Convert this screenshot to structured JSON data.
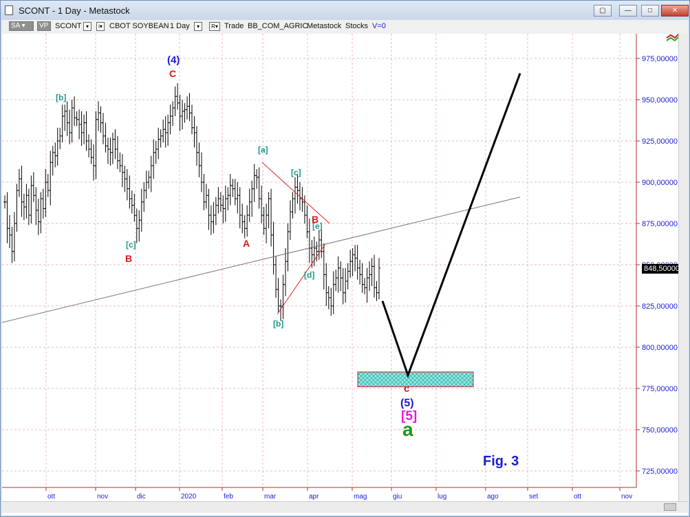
{
  "window": {
    "title": "SCONT - 1 Day - Metastock",
    "buttons": [
      "restore",
      "minimize",
      "maximize",
      "close"
    ]
  },
  "toolbar": {
    "sa_label": "SA",
    "vp_label": "VP",
    "symbol": "SCONT",
    "name": "CBOT SOYBEAN",
    "period": "1 Day",
    "trade_label": "Trade",
    "source": "BB_COM_AGRIC",
    "app": "Metastock",
    "type": "Stocks",
    "volume": "V=0"
  },
  "price_tag": "848,50000",
  "wave_labels": [
    {
      "text": "(4)",
      "color": "#1a1ad6"
    },
    {
      "text": "C",
      "color": "#d41b1b"
    },
    {
      "text": "[b]",
      "color": "#1f9a8a"
    },
    {
      "text": "[c]",
      "color": "#1f9a8a"
    },
    {
      "text": "B",
      "color": "#d41b1b"
    },
    {
      "text": "[a]",
      "color": "#1f9a8a"
    },
    {
      "text": "[c]",
      "color": "#1f9a8a"
    },
    {
      "text": "A",
      "color": "#d41b1b"
    },
    {
      "text": "B",
      "color": "#d41b1b"
    },
    {
      "text": "[e]",
      "color": "#1f9a8a"
    },
    {
      "text": "[d]",
      "color": "#1f9a8a"
    },
    {
      "text": "[b]",
      "color": "#1f9a8a"
    },
    {
      "text": "c",
      "color": "#d41b1b"
    },
    {
      "text": "(5)",
      "color": "#1a1ad6"
    },
    {
      "text": "[5]",
      "color": "#e81ad6"
    },
    {
      "text": "a",
      "color": "#169a16"
    }
  ],
  "annotation": "Fig. 3",
  "chart_data": {
    "type": "bar",
    "x_ticks": [
      "ott",
      "nov",
      "dic",
      "2020",
      "feb",
      "mar",
      "apr",
      "mag",
      "giu",
      "lug",
      "ago",
      "set",
      "ott",
      "nov"
    ],
    "y_ticks": [
      "725,00000",
      "750,00000",
      "775,00000",
      "800,00000",
      "825,00000",
      "850,00000",
      "875,00000",
      "900,00000",
      "925,00000",
      "950,00000",
      "975,00000"
    ],
    "ylim": [
      715,
      990
    ],
    "last_value": 848.5,
    "close": [
      888,
      872,
      868,
      858,
      875,
      895,
      902,
      888,
      885,
      892,
      880,
      898,
      892,
      883,
      876,
      890,
      884,
      900,
      895,
      912,
      918,
      916,
      925,
      928,
      940,
      943,
      936,
      930,
      945,
      939,
      938,
      935,
      930,
      936,
      925,
      920,
      915,
      910,
      938,
      942,
      936,
      928,
      922,
      920,
      918,
      926,
      920,
      913,
      910,
      906,
      902,
      896,
      890,
      886,
      880,
      872,
      877,
      888,
      895,
      900,
      903,
      910,
      918,
      920,
      926,
      928,
      932,
      930,
      936,
      940,
      945,
      952,
      948,
      940,
      943,
      944,
      946,
      942,
      933,
      930,
      918,
      910,
      900,
      888,
      892,
      880,
      876,
      880,
      886,
      890,
      886,
      884,
      890,
      892,
      898,
      896,
      890,
      892,
      880,
      876,
      872,
      880,
      888,
      896,
      904,
      903,
      890,
      880,
      872,
      880,
      890,
      868,
      850,
      835,
      825,
      825,
      838,
      852,
      870,
      882,
      890,
      897,
      895,
      890,
      888,
      880,
      870,
      860,
      856,
      860,
      858,
      865,
      858,
      844,
      833,
      830,
      825,
      838,
      842,
      848,
      842,
      833,
      840,
      846,
      852,
      856,
      854,
      848,
      844,
      838,
      836,
      842,
      844,
      849,
      836,
      833,
      848
    ],
    "trendline": {
      "x": [
        "start",
        "giu-lug"
      ],
      "y": [
        815,
        891
      ]
    },
    "triangle_upper": {
      "y": [
        912,
        875
      ]
    },
    "triangle_lower": {
      "y": [
        820,
        862
      ]
    },
    "projection_path": [
      848.5,
      828,
      783,
      966
    ],
    "target_zone": [
      776,
      785
    ]
  }
}
